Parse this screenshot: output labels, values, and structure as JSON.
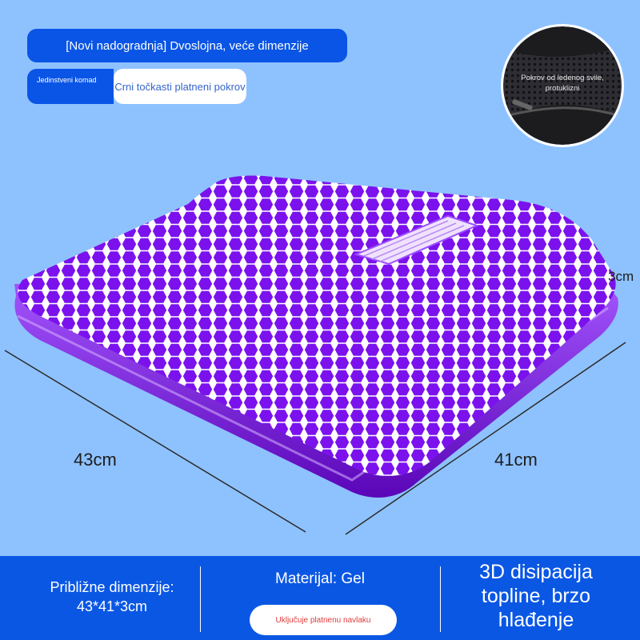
{
  "header": {
    "headline": "[Novi nadogradnja] Dvoslojna, veće dimenzije",
    "tag_left": "Jedinstveni komad",
    "tag_right": "Crni točkasti platneni pokrov"
  },
  "inset": {
    "caption": "Pokrov od ledenog svile, protuklizni"
  },
  "dimensions": {
    "width": "43cm",
    "depth": "41cm",
    "height": "3cm"
  },
  "footer": {
    "size_label": "Približne dimenzije: 43*41*3cm",
    "material": "Materijal: Gel",
    "includes": "Uključuje platnenu navlaku",
    "cooling": "3D disipacija topline, brzo hlađenje"
  },
  "colors": {
    "background": "#8ec2ff",
    "accent_blue": "#0a55e6",
    "cushion_purple": "#7a10f0"
  }
}
